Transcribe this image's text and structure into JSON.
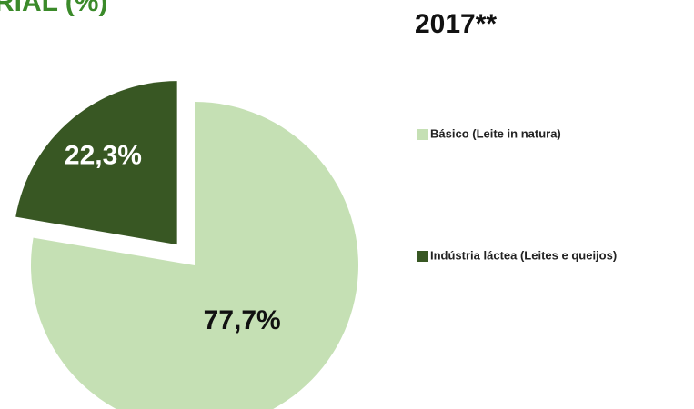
{
  "chart_data": {
    "type": "pie",
    "title": "RIAL (%)",
    "subtitle": "2017**",
    "categories": [
      "Básico (Leite in natura)",
      "Indústria láctea (Leites e queijos)"
    ],
    "values": [
      77.7,
      22.3
    ],
    "value_labels": [
      "77,7%",
      "22,3%"
    ],
    "colors": [
      "#c5e0b4",
      "#385723"
    ],
    "exploded": [
      false,
      true
    ],
    "legend": "right"
  }
}
